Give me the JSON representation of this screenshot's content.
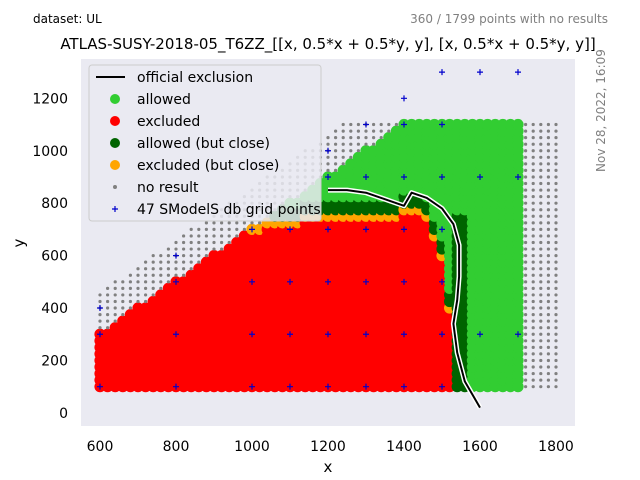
{
  "header": {
    "dataset_label": "dataset: UL",
    "points_note": "360 / 1799 points with no results",
    "timestamp": "Nov 28, 2022, 16:09"
  },
  "chart_data": {
    "type": "scatter",
    "title": "ATLAS-SUSY-2018-05_T6ZZ_[[x, 0.5*x + 0.5*y, y], [x, 0.5*x + 0.5*y, y]]",
    "xlabel": "x",
    "ylabel": "y",
    "xlim": [
      550,
      1850
    ],
    "ylim": [
      -50,
      1350
    ],
    "xticks": [
      600,
      800,
      1000,
      1200,
      1400,
      1600,
      1800
    ],
    "yticks": [
      0,
      200,
      400,
      600,
      800,
      1000,
      1200
    ],
    "grid": false,
    "background": "#eaeaf2",
    "legend_position": "top-left",
    "legend": [
      {
        "label": "official exclusion",
        "kind": "line",
        "color": "#000000"
      },
      {
        "label": "allowed",
        "kind": "dot",
        "color": "#32cd32"
      },
      {
        "label": "excluded",
        "kind": "dot",
        "color": "#ff0000"
      },
      {
        "label": "allowed (but close)",
        "kind": "dot",
        "color": "#006400"
      },
      {
        "label": "excluded (but close)",
        "kind": "dot",
        "color": "#ffa500"
      },
      {
        "label": "no result",
        "kind": "smalldot",
        "color": "#808080"
      },
      {
        "label": "47 SModelS db grid points",
        "kind": "plus",
        "color": "#0000cc"
      }
    ],
    "scan_grid": {
      "x_min": 600,
      "x_max": 1800,
      "x_step": 20,
      "y_min": 100,
      "y_step": 25
    },
    "status_regions": {
      "no_result_band_width": 160,
      "no_result_y_max": 1100,
      "point_y_max": 1100,
      "allowed_x_max": 1700,
      "excluded_boundary": [
        [
          600,
          400
        ],
        [
          700,
          520
        ],
        [
          800,
          610
        ],
        [
          880,
          660
        ],
        [
          960,
          700
        ],
        [
          1000,
          710
        ],
        [
          1080,
          740
        ],
        [
          1200,
          760
        ],
        [
          1300,
          760
        ],
        [
          1380,
          770
        ],
        [
          1450,
          790
        ],
        [
          1480,
          680
        ],
        [
          1510,
          560
        ],
        [
          1520,
          420
        ],
        [
          1500,
          300
        ],
        [
          1500,
          100
        ]
      ],
      "excluded_close_width": 25,
      "allowed_close_width": 50
    },
    "official_exclusion": [
      [
        1200,
        850
      ],
      [
        1250,
        850
      ],
      [
        1300,
        840
      ],
      [
        1340,
        820
      ],
      [
        1380,
        800
      ],
      [
        1400,
        790
      ],
      [
        1420,
        840
      ],
      [
        1460,
        820
      ],
      [
        1500,
        780
      ],
      [
        1530,
        720
      ],
      [
        1545,
        640
      ],
      [
        1545,
        520
      ],
      [
        1540,
        430
      ],
      [
        1530,
        340
      ],
      [
        1540,
        230
      ],
      [
        1560,
        120
      ],
      [
        1600,
        20
      ]
    ],
    "smodels_grid_points": [
      [
        600,
        100
      ],
      [
        600,
        300
      ],
      [
        600,
        400
      ],
      [
        800,
        100
      ],
      [
        800,
        300
      ],
      [
        800,
        500
      ],
      [
        800,
        600
      ],
      [
        1000,
        100
      ],
      [
        1000,
        300
      ],
      [
        1000,
        500
      ],
      [
        1000,
        700
      ],
      [
        1100,
        100
      ],
      [
        1100,
        300
      ],
      [
        1100,
        500
      ],
      [
        1100,
        700
      ],
      [
        1200,
        100
      ],
      [
        1200,
        300
      ],
      [
        1200,
        500
      ],
      [
        1200,
        700
      ],
      [
        1200,
        900
      ],
      [
        1200,
        1000
      ],
      [
        1300,
        100
      ],
      [
        1300,
        300
      ],
      [
        1300,
        500
      ],
      [
        1300,
        700
      ],
      [
        1300,
        900
      ],
      [
        1300,
        1100
      ],
      [
        1400,
        100
      ],
      [
        1400,
        300
      ],
      [
        1400,
        500
      ],
      [
        1400,
        700
      ],
      [
        1400,
        900
      ],
      [
        1400,
        1100
      ],
      [
        1400,
        1200
      ],
      [
        1500,
        100
      ],
      [
        1500,
        300
      ],
      [
        1500,
        500
      ],
      [
        1500,
        700
      ],
      [
        1500,
        900
      ],
      [
        1500,
        1100
      ],
      [
        1500,
        1300
      ],
      [
        1600,
        300
      ],
      [
        1600,
        900
      ],
      [
        1600,
        1300
      ],
      [
        1700,
        300
      ],
      [
        1700,
        900
      ],
      [
        1700,
        1300
      ]
    ]
  }
}
